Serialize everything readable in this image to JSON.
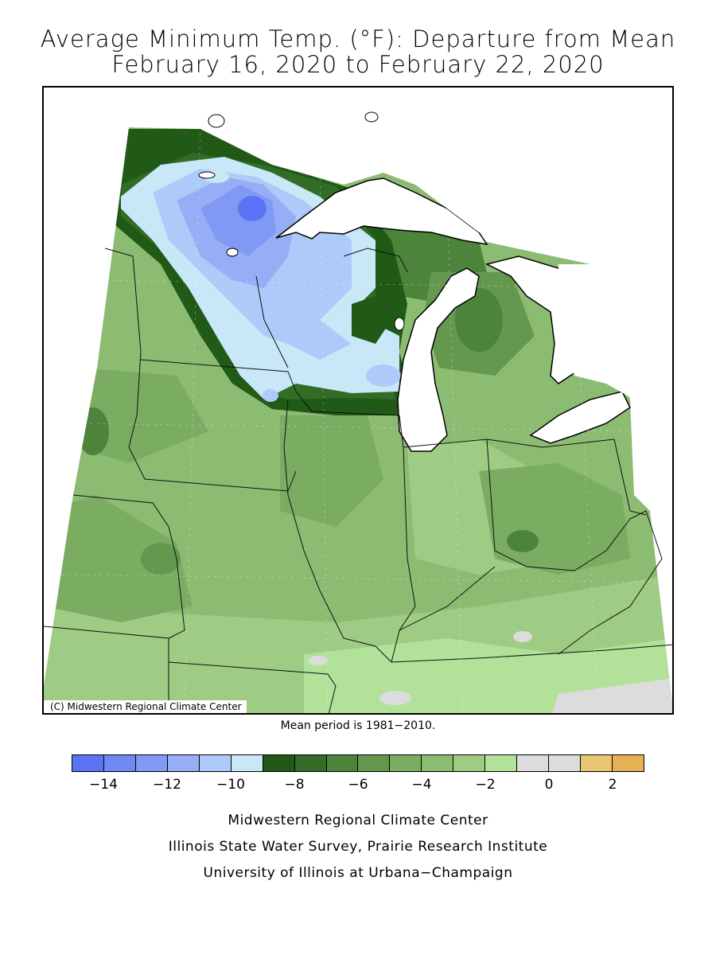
{
  "title": {
    "line1": "Average Minimum Temp. (°F): Departure from Mean",
    "line2": "February 16, 2020 to February 22, 2020"
  },
  "map": {
    "copyright": "(C) Midwestern Regional Climate Center",
    "mean_period_note": "Mean period is 1981−2010."
  },
  "legend": {
    "colors": [
      "#5a74f5",
      "#7089f5",
      "#8099f5",
      "#97aef6",
      "#aecaf8",
      "#c8e8f8",
      "#215a17",
      "#336c26",
      "#4c843b",
      "#64984e",
      "#7aac62",
      "#8cbc72",
      "#9ecc84",
      "#b2e29a",
      "#dcdcdc",
      "#dcdcdc",
      "#e8c673",
      "#e6b055"
    ],
    "labels": [
      "−14",
      "−12",
      "−10",
      "−8",
      "−6",
      "−4",
      "−2",
      "0",
      "2"
    ]
  },
  "credits": {
    "line1": "Midwestern Regional Climate Center",
    "line2": "Illinois State Water Survey, Prairie Research Institute",
    "line3": "University of Illinois at Urbana−Champaign"
  }
}
